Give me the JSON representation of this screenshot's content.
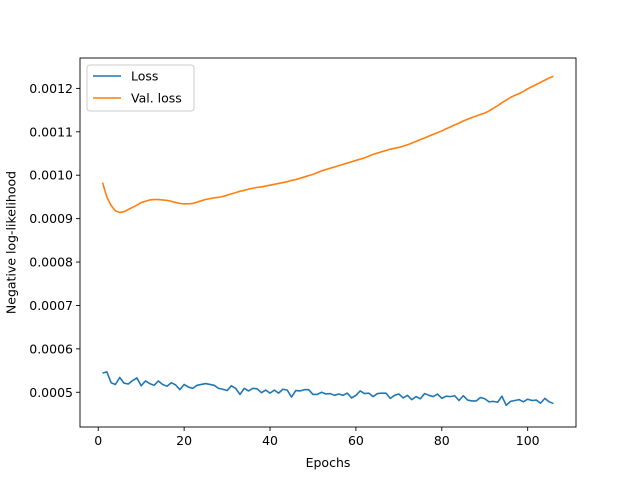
{
  "chart_data": {
    "type": "line",
    "title": "",
    "xlabel": "Epochs",
    "ylabel": "Negative log-likelihood",
    "xlim": [
      -4.25,
      111.25
    ],
    "ylim": [
      0.00042,
      0.00127
    ],
    "xticks": [
      0,
      20,
      40,
      60,
      80,
      100
    ],
    "xtick_labels": [
      "0",
      "20",
      "40",
      "60",
      "80",
      "100"
    ],
    "yticks": [
      0.0005,
      0.0006,
      0.0007,
      0.0008,
      0.0009,
      0.001,
      0.0011,
      0.0012
    ],
    "ytick_labels": [
      "0.0005",
      "0.0006",
      "0.0007",
      "0.0008",
      "0.0009",
      "0.0010",
      "0.0011",
      "0.0012"
    ],
    "grid": false,
    "legend_position": "top-left",
    "series": [
      {
        "name": "Loss",
        "color": "#1f77b4",
        "x": [
          1,
          2,
          3,
          4,
          5,
          6,
          7,
          8,
          9,
          10,
          11,
          12,
          13,
          14,
          15,
          16,
          17,
          18,
          19,
          20,
          21,
          22,
          23,
          24,
          25,
          26,
          27,
          28,
          29,
          30,
          31,
          32,
          33,
          34,
          35,
          36,
          37,
          38,
          39,
          40,
          41,
          42,
          43,
          44,
          45,
          46,
          47,
          48,
          49,
          50,
          51,
          52,
          53,
          54,
          55,
          56,
          57,
          58,
          59,
          60,
          61,
          62,
          63,
          64,
          65,
          66,
          67,
          68,
          69,
          70,
          71,
          72,
          73,
          74,
          75,
          76,
          77,
          78,
          79,
          80,
          81,
          82,
          83,
          84,
          85,
          86,
          87,
          88,
          89,
          90,
          91,
          92,
          93,
          94,
          95,
          96,
          97,
          98,
          99,
          100,
          101,
          102,
          103,
          104,
          105,
          106
        ],
        "values": [
          0.000544,
          0.000547,
          0.000522,
          0.000518,
          0.000534,
          0.000521,
          0.000519,
          0.000527,
          0.000533,
          0.000515,
          0.000526,
          0.00052,
          0.000516,
          0.000526,
          0.000518,
          0.000514,
          0.000522,
          0.000517,
          0.000506,
          0.000518,
          0.000512,
          0.000509,
          0.000516,
          0.000518,
          0.00052,
          0.000518,
          0.000516,
          0.000509,
          0.000507,
          0.000504,
          0.000515,
          0.000509,
          0.000495,
          0.000509,
          0.000503,
          0.000509,
          0.000508,
          0.000499,
          0.000505,
          0.000498,
          0.000505,
          0.000498,
          0.000507,
          0.000505,
          0.000489,
          0.000504,
          0.000503,
          0.000506,
          0.000506,
          0.000495,
          0.000495,
          0.0005,
          0.000496,
          0.000497,
          0.000493,
          0.000496,
          0.000493,
          0.000498,
          0.000487,
          0.000493,
          0.000503,
          0.000497,
          0.000498,
          0.00049,
          0.000497,
          0.000498,
          0.000498,
          0.000486,
          0.000493,
          0.000496,
          0.000487,
          0.000493,
          0.000483,
          0.00049,
          0.000485,
          0.000497,
          0.000493,
          0.00049,
          0.000496,
          0.000486,
          0.000491,
          0.00049,
          0.000492,
          0.000481,
          0.000492,
          0.000482,
          0.00048,
          0.00048,
          0.000488,
          0.000485,
          0.000478,
          0.000479,
          0.000477,
          0.000491,
          0.00047,
          0.000479,
          0.000481,
          0.000483,
          0.000478,
          0.000484,
          0.000481,
          0.000482,
          0.000475,
          0.000486,
          0.000478,
          0.000474
        ]
      },
      {
        "name": "Val. loss",
        "color": "#ff7f0e",
        "x": [
          1,
          2,
          3,
          4,
          5,
          6,
          7,
          8,
          9,
          10,
          11,
          12,
          13,
          14,
          15,
          16,
          17,
          18,
          19,
          20,
          21,
          22,
          23,
          24,
          25,
          26,
          27,
          28,
          29,
          30,
          31,
          32,
          33,
          34,
          35,
          36,
          37,
          38,
          39,
          40,
          41,
          42,
          43,
          44,
          45,
          46,
          47,
          48,
          49,
          50,
          51,
          52,
          53,
          54,
          55,
          56,
          57,
          58,
          59,
          60,
          61,
          62,
          63,
          64,
          65,
          66,
          67,
          68,
          69,
          70,
          71,
          72,
          73,
          74,
          75,
          76,
          77,
          78,
          79,
          80,
          81,
          82,
          83,
          84,
          85,
          86,
          87,
          88,
          89,
          90,
          91,
          92,
          93,
          94,
          95,
          96,
          97,
          98,
          99,
          100,
          101,
          102,
          103,
          104,
          105,
          106
        ],
        "values": [
          0.000983,
          0.00095,
          0.00093,
          0.000918,
          0.000914,
          0.000916,
          0.000921,
          0.000926,
          0.000931,
          0.000937,
          0.00094,
          0.000943,
          0.000944,
          0.000944,
          0.000943,
          0.000942,
          0.00094,
          0.000937,
          0.000935,
          0.000934,
          0.000934,
          0.000935,
          0.000938,
          0.000941,
          0.000944,
          0.000946,
          0.000948,
          0.000949,
          0.000951,
          0.000954,
          0.000957,
          0.00096,
          0.000963,
          0.000965,
          0.000968,
          0.00097,
          0.000972,
          0.000973,
          0.000975,
          0.000977,
          0.000979,
          0.000981,
          0.000983,
          0.000985,
          0.000988,
          0.00099,
          0.000993,
          0.000996,
          0.000999,
          0.001002,
          0.001006,
          0.00101,
          0.001013,
          0.001016,
          0.001019,
          0.001022,
          0.001025,
          0.001028,
          0.001031,
          0.001034,
          0.001037,
          0.00104,
          0.001044,
          0.001048,
          0.001051,
          0.001054,
          0.001057,
          0.00106,
          0.001062,
          0.001064,
          0.001067,
          0.00107,
          0.001074,
          0.001078,
          0.001082,
          0.001086,
          0.00109,
          0.001094,
          0.001098,
          0.001102,
          0.001107,
          0.001111,
          0.001116,
          0.00112,
          0.001125,
          0.001129,
          0.001133,
          0.001136,
          0.00114,
          0.001143,
          0.001148,
          0.001154,
          0.00116,
          0.001167,
          0.001173,
          0.001179,
          0.001184,
          0.001188,
          0.001193,
          0.001199,
          0.001204,
          0.001209,
          0.001214,
          0.001219,
          0.001224,
          0.001228
        ]
      }
    ]
  }
}
